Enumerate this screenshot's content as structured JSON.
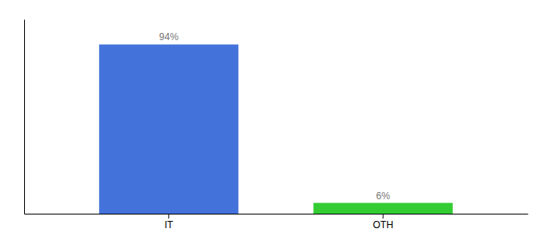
{
  "chart_data": {
    "type": "bar",
    "categories": [
      "IT",
      "OTH"
    ],
    "values": [
      94,
      6
    ],
    "value_labels": [
      "94%",
      "6%"
    ],
    "colors": [
      "#4472db",
      "#33cc33"
    ],
    "ylim": [
      0,
      108
    ],
    "yticks": [],
    "data_labels": true,
    "tick_labels": "x",
    "grid": false
  }
}
